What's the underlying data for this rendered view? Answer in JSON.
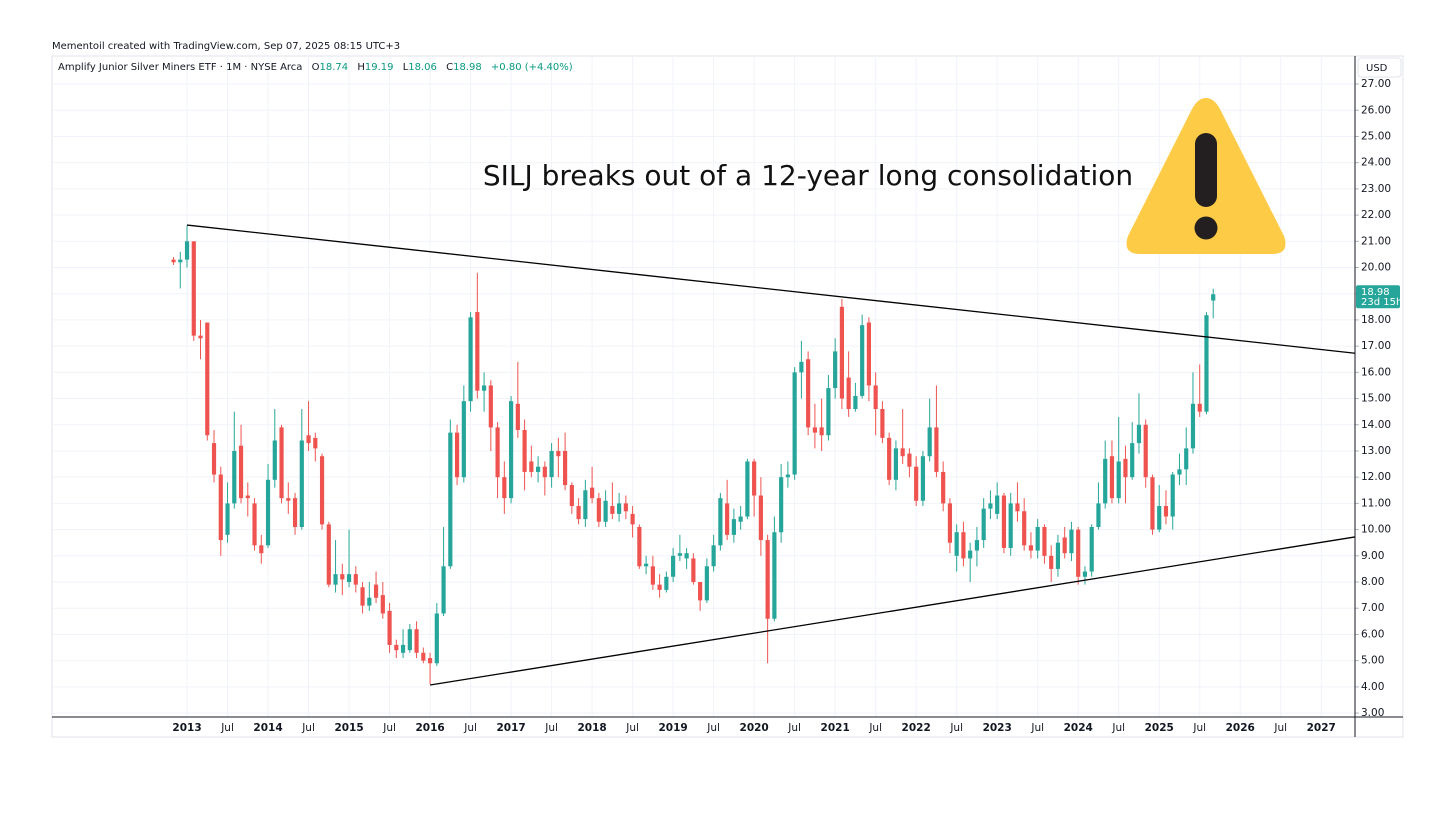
{
  "header": "Mementoil created with TradingView.com, Sep 07, 2025 08:15 UTC+3",
  "chart_data": {
    "type": "candlestick",
    "title": "Amplify Junior Silver Miners ETF · 1M · NYSE Arca",
    "legend": {
      "o": "O",
      "h": "H",
      "l": "L",
      "c": "C",
      "change": "+0.80 (+4.40%)"
    },
    "currency": "USD",
    "countdown": "23d 15h",
    "annotation": "SILJ breaks out of a 12-year long consolidation",
    "up_color": "#26a69a",
    "down_color": "#ef5350",
    "xlim": [
      "2011-05",
      "2027-06"
    ],
    "ylim": [
      2.85,
      28.07
    ],
    "grid": true,
    "xticks": [
      {
        "value": "2013-01",
        "label": "2013"
      },
      {
        "value": "2013-07",
        "label": "Jul"
      },
      {
        "value": "2014-01",
        "label": "2014"
      },
      {
        "value": "2014-07",
        "label": "Jul"
      },
      {
        "value": "2015-01",
        "label": "2015"
      },
      {
        "value": "2015-07",
        "label": "Jul"
      },
      {
        "value": "2016-01",
        "label": "2016"
      },
      {
        "value": "2016-07",
        "label": "Jul"
      },
      {
        "value": "2017-01",
        "label": "2017"
      },
      {
        "value": "2017-07",
        "label": "Jul"
      },
      {
        "value": "2018-01",
        "label": "2018"
      },
      {
        "value": "2018-07",
        "label": "Jul"
      },
      {
        "value": "2019-01",
        "label": "2019"
      },
      {
        "value": "2019-07",
        "label": "Jul"
      },
      {
        "value": "2020-01",
        "label": "2020"
      },
      {
        "value": "2020-07",
        "label": "Jul"
      },
      {
        "value": "2021-01",
        "label": "2021"
      },
      {
        "value": "2021-07",
        "label": "Jul"
      },
      {
        "value": "2022-01",
        "label": "2022"
      },
      {
        "value": "2022-07",
        "label": "Jul"
      },
      {
        "value": "2023-01",
        "label": "2023"
      },
      {
        "value": "2023-07",
        "label": "Jul"
      },
      {
        "value": "2024-01",
        "label": "2024"
      },
      {
        "value": "2024-07",
        "label": "Jul"
      },
      {
        "value": "2025-01",
        "label": "2025"
      },
      {
        "value": "2025-07",
        "label": "Jul"
      },
      {
        "value": "2026-01",
        "label": "2026"
      },
      {
        "value": "2026-07",
        "label": "Jul"
      },
      {
        "value": "2027-01",
        "label": "2027"
      }
    ],
    "yticks": [
      {
        "value": 3,
        "label": "3.00"
      },
      {
        "value": 4,
        "label": "4.00"
      },
      {
        "value": 5,
        "label": "5.00"
      },
      {
        "value": 6,
        "label": "6.00"
      },
      {
        "value": 7,
        "label": "7.00"
      },
      {
        "value": 8,
        "label": "8.00"
      },
      {
        "value": 9,
        "label": "9.00"
      },
      {
        "value": 10,
        "label": "10.00"
      },
      {
        "value": 11,
        "label": "11.00"
      },
      {
        "value": 12,
        "label": "12.00"
      },
      {
        "value": 13,
        "label": "13.00"
      },
      {
        "value": 14,
        "label": "14.00"
      },
      {
        "value": 15,
        "label": "15.00"
      },
      {
        "value": 16,
        "label": "16.00"
      },
      {
        "value": 17,
        "label": "17.00"
      },
      {
        "value": 18,
        "label": "18.00"
      },
      {
        "value": 19,
        "label": "19.00"
      },
      {
        "value": 20,
        "label": "20.00"
      },
      {
        "value": 21,
        "label": "21.00"
      },
      {
        "value": 22,
        "label": "22.00"
      },
      {
        "value": 23,
        "label": "23.00"
      },
      {
        "value": 24,
        "label": "24.00"
      },
      {
        "value": 25,
        "label": "25.00"
      },
      {
        "value": 26,
        "label": "26.00"
      },
      {
        "value": 27,
        "label": "27.00"
      }
    ],
    "x": [
      "2012-11",
      "2012-12",
      "2013-01",
      "2013-02",
      "2013-03",
      "2013-04",
      "2013-05",
      "2013-06",
      "2013-07",
      "2013-08",
      "2013-09",
      "2013-10",
      "2013-11",
      "2013-12",
      "2014-01",
      "2014-02",
      "2014-03",
      "2014-04",
      "2014-05",
      "2014-06",
      "2014-07",
      "2014-08",
      "2014-09",
      "2014-10",
      "2014-11",
      "2014-12",
      "2015-01",
      "2015-02",
      "2015-03",
      "2015-04",
      "2015-05",
      "2015-06",
      "2015-07",
      "2015-08",
      "2015-09",
      "2015-10",
      "2015-11",
      "2015-12",
      "2016-01",
      "2016-02",
      "2016-03",
      "2016-04",
      "2016-05",
      "2016-06",
      "2016-07",
      "2016-08",
      "2016-09",
      "2016-10",
      "2016-11",
      "2016-12",
      "2017-01",
      "2017-02",
      "2017-03",
      "2017-04",
      "2017-05",
      "2017-06",
      "2017-07",
      "2017-08",
      "2017-09",
      "2017-10",
      "2017-11",
      "2017-12",
      "2018-01",
      "2018-02",
      "2018-03",
      "2018-04",
      "2018-05",
      "2018-06",
      "2018-07",
      "2018-08",
      "2018-09",
      "2018-10",
      "2018-11",
      "2018-12",
      "2019-01",
      "2019-02",
      "2019-03",
      "2019-04",
      "2019-05",
      "2019-06",
      "2019-07",
      "2019-08",
      "2019-09",
      "2019-10",
      "2019-11",
      "2019-12",
      "2020-01",
      "2020-02",
      "2020-03",
      "2020-04",
      "2020-05",
      "2020-06",
      "2020-07",
      "2020-08",
      "2020-09",
      "2020-10",
      "2020-11",
      "2020-12",
      "2021-01",
      "2021-02",
      "2021-03",
      "2021-04",
      "2021-05",
      "2021-06",
      "2021-07",
      "2021-08",
      "2021-09",
      "2021-10",
      "2021-11",
      "2021-12",
      "2022-01",
      "2022-02",
      "2022-03",
      "2022-04",
      "2022-05",
      "2022-06",
      "2022-07",
      "2022-08",
      "2022-09",
      "2022-10",
      "2022-11",
      "2022-12",
      "2023-01",
      "2023-02",
      "2023-03",
      "2023-04",
      "2023-05",
      "2023-06",
      "2023-07",
      "2023-08",
      "2023-09",
      "2023-10",
      "2023-11",
      "2023-12",
      "2024-01",
      "2024-02",
      "2024-03",
      "2024-04",
      "2024-05",
      "2024-06",
      "2024-07",
      "2024-08",
      "2024-09",
      "2024-10",
      "2024-11",
      "2024-12",
      "2025-01",
      "2025-02",
      "2025-03",
      "2025-04",
      "2025-05",
      "2025-06",
      "2025-07",
      "2025-08",
      "2025-09"
    ],
    "ohlc": [
      [
        20.3,
        20.4,
        20.1,
        20.2
      ],
      [
        20.2,
        20.6,
        19.2,
        20.3
      ],
      [
        20.3,
        21.6,
        20.0,
        21.0
      ],
      [
        21.0,
        21.0,
        17.2,
        17.4
      ],
      [
        17.4,
        18.0,
        16.5,
        17.3
      ],
      [
        17.9,
        17.9,
        13.4,
        13.6
      ],
      [
        13.3,
        13.8,
        11.8,
        12.1
      ],
      [
        12.1,
        12.4,
        9.0,
        9.6
      ],
      [
        9.8,
        11.8,
        9.5,
        11.0
      ],
      [
        11.0,
        14.5,
        10.8,
        13.0
      ],
      [
        13.2,
        14.0,
        11.0,
        11.2
      ],
      [
        11.3,
        11.8,
        10.5,
        11.2
      ],
      [
        11.0,
        11.2,
        9.2,
        9.4
      ],
      [
        9.4,
        9.8,
        8.7,
        9.1
      ],
      [
        9.4,
        12.5,
        9.3,
        11.9
      ],
      [
        11.9,
        14.6,
        11.6,
        13.4
      ],
      [
        13.9,
        14.0,
        11.0,
        11.2
      ],
      [
        11.2,
        11.8,
        10.6,
        11.1
      ],
      [
        11.2,
        11.4,
        9.8,
        10.1
      ],
      [
        10.1,
        14.6,
        10.0,
        13.4
      ],
      [
        13.6,
        14.9,
        13.0,
        13.3
      ],
      [
        13.5,
        13.7,
        12.6,
        13.1
      ],
      [
        12.8,
        12.9,
        10.0,
        10.2
      ],
      [
        10.2,
        10.3,
        7.8,
        7.9
      ],
      [
        7.9,
        9.6,
        7.6,
        8.3
      ],
      [
        8.3,
        8.7,
        7.5,
        8.1
      ],
      [
        8.0,
        10.0,
        7.8,
        8.3
      ],
      [
        8.3,
        8.6,
        7.6,
        7.9
      ],
      [
        7.8,
        8.0,
        6.8,
        7.1
      ],
      [
        7.1,
        8.0,
        6.9,
        7.4
      ],
      [
        7.9,
        8.4,
        7.2,
        7.4
      ],
      [
        7.5,
        8.0,
        6.6,
        6.8
      ],
      [
        6.9,
        7.2,
        5.3,
        5.6
      ],
      [
        5.6,
        5.8,
        5.1,
        5.4
      ],
      [
        5.3,
        6.2,
        5.1,
        5.6
      ],
      [
        5.4,
        6.4,
        5.3,
        6.2
      ],
      [
        6.2,
        6.5,
        5.1,
        5.3
      ],
      [
        5.3,
        5.5,
        4.9,
        5.0
      ],
      [
        5.1,
        5.3,
        4.1,
        4.9
      ],
      [
        4.9,
        7.2,
        4.8,
        6.8
      ],
      [
        6.8,
        10.1,
        6.7,
        8.6
      ],
      [
        8.6,
        14.2,
        8.5,
        13.7
      ],
      [
        13.7,
        14.0,
        11.7,
        12.0
      ],
      [
        12.0,
        15.5,
        11.8,
        14.9
      ],
      [
        14.9,
        18.3,
        14.5,
        18.1
      ],
      [
        18.3,
        19.8,
        15.0,
        15.3
      ],
      [
        15.3,
        16.0,
        14.5,
        15.5
      ],
      [
        15.5,
        15.7,
        13.0,
        13.9
      ],
      [
        13.9,
        14.1,
        11.2,
        12.0
      ],
      [
        12.0,
        12.6,
        10.6,
        11.2
      ],
      [
        11.2,
        15.1,
        11.0,
        14.9
      ],
      [
        14.8,
        16.4,
        13.5,
        13.8
      ],
      [
        13.8,
        14.2,
        11.5,
        12.2
      ],
      [
        12.6,
        13.2,
        12.0,
        12.2
      ],
      [
        12.2,
        12.8,
        11.8,
        12.4
      ],
      [
        12.4,
        12.6,
        11.3,
        12.0
      ],
      [
        12.0,
        13.3,
        11.6,
        13.0
      ],
      [
        13.0,
        13.5,
        12.0,
        12.8
      ],
      [
        13.0,
        13.7,
        11.5,
        11.7
      ],
      [
        11.7,
        11.8,
        10.6,
        10.9
      ],
      [
        10.9,
        11.2,
        10.2,
        10.4
      ],
      [
        10.4,
        11.9,
        10.1,
        11.5
      ],
      [
        11.6,
        12.4,
        11.0,
        11.2
      ],
      [
        11.2,
        11.4,
        10.1,
        10.3
      ],
      [
        10.3,
        11.5,
        10.1,
        11.1
      ],
      [
        10.9,
        11.8,
        10.4,
        10.6
      ],
      [
        10.6,
        11.4,
        10.3,
        11.0
      ],
      [
        11.0,
        11.3,
        10.4,
        10.7
      ],
      [
        10.6,
        10.9,
        9.7,
        10.2
      ],
      [
        10.1,
        10.2,
        8.5,
        8.6
      ],
      [
        8.6,
        9.0,
        8.3,
        8.7
      ],
      [
        8.6,
        9.0,
        7.7,
        7.9
      ],
      [
        7.9,
        8.3,
        7.4,
        7.7
      ],
      [
        7.7,
        8.4,
        7.6,
        8.2
      ],
      [
        8.2,
        9.3,
        8.0,
        9.0
      ],
      [
        9.0,
        9.8,
        8.8,
        9.1
      ],
      [
        8.9,
        9.3,
        8.5,
        9.1
      ],
      [
        8.9,
        9.1,
        7.9,
        8.0
      ],
      [
        8.0,
        8.0,
        6.9,
        7.3
      ],
      [
        7.3,
        8.9,
        7.2,
        8.6
      ],
      [
        8.6,
        9.8,
        8.4,
        9.4
      ],
      [
        9.4,
        11.4,
        9.2,
        11.2
      ],
      [
        11.0,
        11.9,
        9.6,
        9.8
      ],
      [
        9.8,
        10.8,
        9.5,
        10.4
      ],
      [
        10.3,
        10.9,
        10.0,
        10.5
      ],
      [
        10.5,
        12.7,
        10.4,
        12.6
      ],
      [
        12.6,
        12.7,
        10.5,
        11.3
      ],
      [
        11.3,
        12.0,
        9.0,
        9.6
      ],
      [
        9.6,
        9.8,
        4.9,
        6.6
      ],
      [
        6.6,
        10.5,
        6.5,
        9.9
      ],
      [
        9.9,
        12.5,
        9.5,
        12.0
      ],
      [
        12.0,
        12.6,
        11.6,
        12.1
      ],
      [
        12.1,
        16.2,
        11.9,
        16.0
      ],
      [
        16.0,
        17.2,
        15.0,
        16.4
      ],
      [
        16.5,
        16.8,
        13.6,
        13.9
      ],
      [
        13.9,
        14.8,
        13.1,
        13.7
      ],
      [
        13.9,
        15.0,
        13.0,
        13.6
      ],
      [
        13.6,
        15.9,
        13.4,
        15.4
      ],
      [
        15.4,
        17.3,
        15.0,
        16.8
      ],
      [
        18.5,
        18.8,
        14.6,
        15.0
      ],
      [
        15.8,
        16.8,
        14.3,
        14.6
      ],
      [
        14.6,
        15.6,
        14.5,
        15.1
      ],
      [
        15.1,
        18.2,
        15.0,
        17.8
      ],
      [
        17.9,
        18.1,
        14.9,
        15.5
      ],
      [
        15.5,
        16.0,
        13.6,
        14.6
      ],
      [
        14.6,
        14.9,
        13.3,
        13.5
      ],
      [
        13.5,
        13.7,
        11.7,
        11.9
      ],
      [
        11.9,
        13.4,
        11.5,
        13.1
      ],
      [
        13.1,
        14.6,
        12.5,
        12.8
      ],
      [
        12.9,
        13.1,
        12.0,
        12.4
      ],
      [
        12.4,
        12.8,
        10.9,
        11.1
      ],
      [
        11.1,
        13.0,
        10.9,
        12.8
      ],
      [
        12.8,
        15.0,
        12.6,
        13.9
      ],
      [
        13.9,
        15.5,
        12.0,
        12.2
      ],
      [
        12.2,
        12.6,
        10.7,
        11.0
      ],
      [
        11.0,
        11.2,
        9.1,
        9.5
      ],
      [
        9.0,
        10.2,
        8.4,
        9.9
      ],
      [
        9.9,
        10.3,
        8.6,
        8.9
      ],
      [
        8.9,
        9.5,
        8.0,
        9.2
      ],
      [
        9.2,
        10.1,
        8.6,
        9.6
      ],
      [
        9.6,
        11.2,
        9.3,
        10.8
      ],
      [
        10.8,
        11.5,
        10.4,
        11.0
      ],
      [
        10.6,
        11.8,
        10.4,
        11.3
      ],
      [
        11.3,
        11.4,
        9.1,
        9.3
      ],
      [
        9.3,
        11.4,
        9.0,
        11.0
      ],
      [
        11.0,
        11.8,
        10.3,
        10.7
      ],
      [
        10.7,
        11.2,
        9.2,
        9.4
      ],
      [
        9.4,
        9.9,
        8.9,
        9.2
      ],
      [
        9.2,
        10.4,
        8.9,
        10.1
      ],
      [
        10.1,
        10.2,
        8.7,
        9.0
      ],
      [
        9.0,
        9.4,
        8.0,
        8.5
      ],
      [
        8.5,
        9.8,
        8.2,
        9.5
      ],
      [
        9.7,
        10.1,
        8.9,
        9.1
      ],
      [
        9.1,
        10.3,
        8.8,
        10.0
      ],
      [
        10.0,
        10.1,
        7.9,
        8.2
      ],
      [
        8.2,
        8.6,
        7.9,
        8.4
      ],
      [
        8.4,
        10.2,
        8.2,
        10.1
      ],
      [
        10.1,
        11.8,
        10.0,
        11.0
      ],
      [
        11.0,
        13.4,
        10.8,
        12.7
      ],
      [
        12.8,
        13.4,
        11.0,
        11.2
      ],
      [
        11.2,
        14.3,
        11.0,
        12.6
      ],
      [
        12.7,
        13.2,
        11.0,
        12.0
      ],
      [
        12.0,
        14.1,
        11.9,
        13.3
      ],
      [
        13.3,
        15.2,
        12.9,
        14.0
      ],
      [
        14.0,
        14.2,
        11.6,
        12.0
      ],
      [
        12.0,
        12.1,
        9.8,
        10.0
      ],
      [
        10.0,
        11.7,
        9.9,
        10.9
      ],
      [
        10.9,
        11.5,
        10.2,
        10.5
      ],
      [
        10.5,
        12.2,
        10.0,
        12.1
      ],
      [
        12.1,
        12.9,
        11.7,
        12.3
      ],
      [
        12.3,
        13.9,
        11.7,
        13.1
      ],
      [
        13.1,
        16.0,
        12.9,
        14.8
      ],
      [
        14.8,
        16.3,
        14.3,
        14.5
      ],
      [
        14.5,
        18.3,
        14.4,
        18.18
      ],
      [
        18.74,
        19.19,
        18.06,
        18.98
      ]
    ],
    "trendlines": [
      {
        "color": "#000000",
        "x": [
          "2013-01",
          "2027-06"
        ],
        "values": [
          21.62,
          16.73
        ]
      },
      {
        "color": "#000000",
        "x": [
          "2016-01",
          "2027-06"
        ],
        "values": [
          4.07,
          9.72
        ]
      }
    ]
  }
}
